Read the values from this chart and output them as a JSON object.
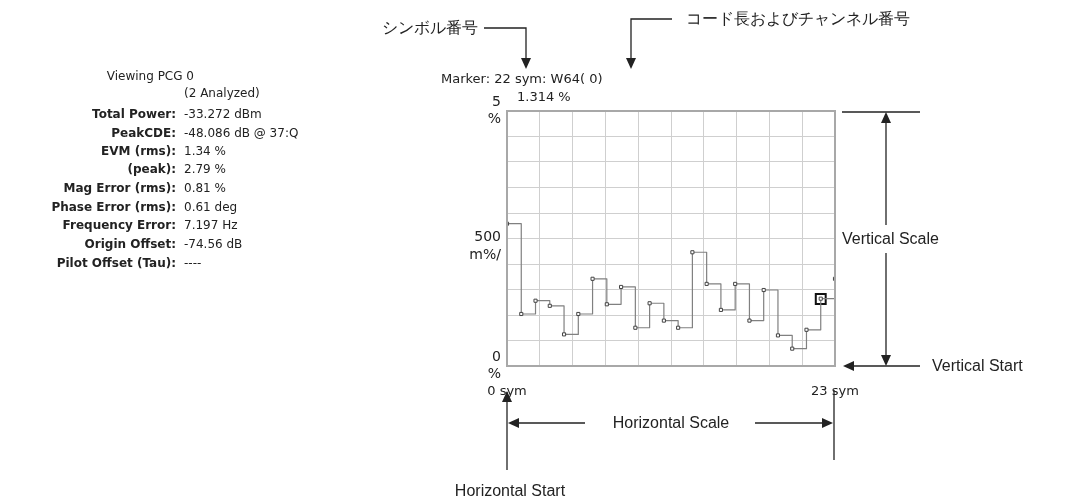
{
  "chart_data": {
    "type": "step",
    "x": [
      0,
      1,
      2,
      3,
      4,
      5,
      6,
      7,
      8,
      9,
      10,
      11,
      12,
      13,
      14,
      15,
      16,
      17,
      18,
      19,
      20,
      21,
      22,
      23
    ],
    "series": [
      {
        "color": "#808080",
        "values": [
          2.79,
          1.02,
          1.28,
          1.18,
          0.62,
          1.02,
          1.71,
          1.21,
          1.55,
          0.75,
          1.23,
          0.89,
          0.75,
          2.23,
          1.61,
          1.1,
          1.61,
          0.89,
          1.49,
          0.6,
          0.34,
          0.71,
          1.32,
          1.71
        ]
      },
      {
        "type": "scatter",
        "color": "#111111",
        "x": [
          22
        ],
        "values": [
          1.314
        ]
      }
    ],
    "xlim": [
      0,
      23
    ],
    "xticks": [
      {
        "value": 0,
        "label": "0 sym"
      },
      {
        "value": 2.3,
        "label": null
      },
      {
        "value": 4.6,
        "label": null
      },
      {
        "value": 6.9,
        "label": null
      },
      {
        "value": 9.2,
        "label": null
      },
      {
        "value": 11.5,
        "label": null
      },
      {
        "value": 13.8,
        "label": null
      },
      {
        "value": 16.1,
        "label": null
      },
      {
        "value": 18.4,
        "label": null
      },
      {
        "value": 20.7,
        "label": null
      },
      {
        "value": 23,
        "label": "23 sym"
      }
    ],
    "ylim": [
      0,
      5
    ],
    "yticks": [
      {
        "value": 0,
        "label": "0 %"
      },
      {
        "value": 0.5,
        "label": null
      },
      {
        "value": 1,
        "label": null
      },
      {
        "value": 1.5,
        "label": null
      },
      {
        "value": 2,
        "label": null
      },
      {
        "value": 2.5,
        "label": null
      },
      {
        "value": 3,
        "label": null
      },
      {
        "value": 3.5,
        "label": null
      },
      {
        "value": 4,
        "label": null
      },
      {
        "value": 4.5,
        "label": null
      },
      {
        "value": 5,
        "label": "5 %"
      }
    ],
    "grid": true,
    "marker": "square",
    "annotations": [
      "Marker: 22 sym: W64( 0)",
      "1.314 %",
      "500 m%/",
      "Viewing PCG 0",
      "(2 Analyzed)",
      "Total Power: -33.272 dBm",
      "PeakCDE: -48.086 dB @ 37:Q",
      "EVM (rms): 1.34 %",
      "(peak): 2.79 %",
      "Mag Error (rms): 0.81 %",
      "Phase Error (rms): 0.61 deg",
      "Frequency Error: 7.197 Hz",
      "Origin Offset: -74.56 dB",
      "Pilot Offset (Tau): ----",
      "シンボル番号",
      "コード長およびチャンネル番号",
      "Vertical Scale",
      "Vertical Start",
      "Horizontal Scale",
      "Horizontal Start"
    ]
  }
}
